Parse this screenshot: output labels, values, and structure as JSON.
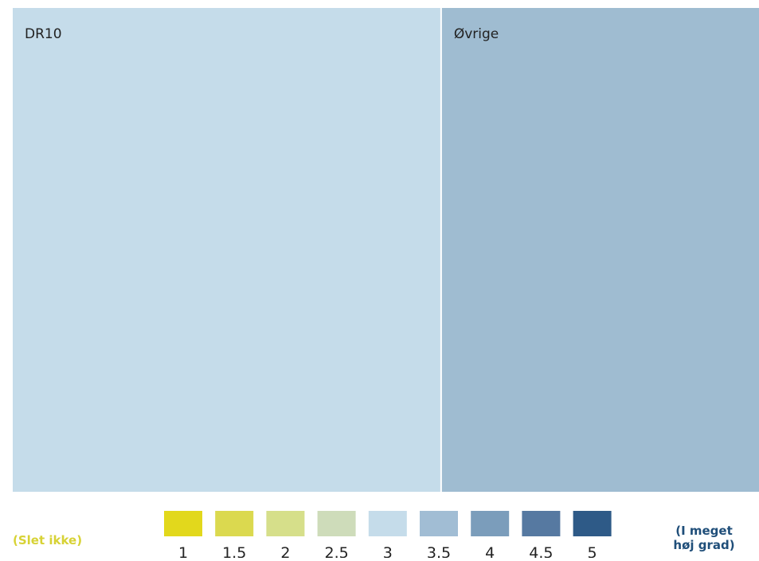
{
  "chart_data": {
    "type": "treemap",
    "tiles": [
      {
        "label": "DR10",
        "size": 538,
        "color_value": 3,
        "color": "#c5dcea"
      },
      {
        "label": "Øvrige",
        "size": 400,
        "color_value": 3.5,
        "color": "#9fbcd1"
      }
    ],
    "legend": {
      "placement": "bottom",
      "low_label": "(Slet ikke)",
      "high_label_lines": [
        "(I meget",
        "høj grad)"
      ],
      "low_label_color": "#d7d235",
      "high_label_color": "#1f4e79",
      "steps": [
        {
          "value": "1",
          "color": "#e2d81c"
        },
        {
          "value": "1.5",
          "color": "#dbd94f"
        },
        {
          "value": "2",
          "color": "#d6df8a"
        },
        {
          "value": "2.5",
          "color": "#cedcba"
        },
        {
          "value": "3",
          "color": "#c5dcea"
        },
        {
          "value": "3.5",
          "color": "#a1bdd4"
        },
        {
          "value": "4",
          "color": "#7b9dbb"
        },
        {
          "value": "4.5",
          "color": "#5679a1"
        },
        {
          "value": "5",
          "color": "#2e5a87"
        }
      ]
    }
  }
}
